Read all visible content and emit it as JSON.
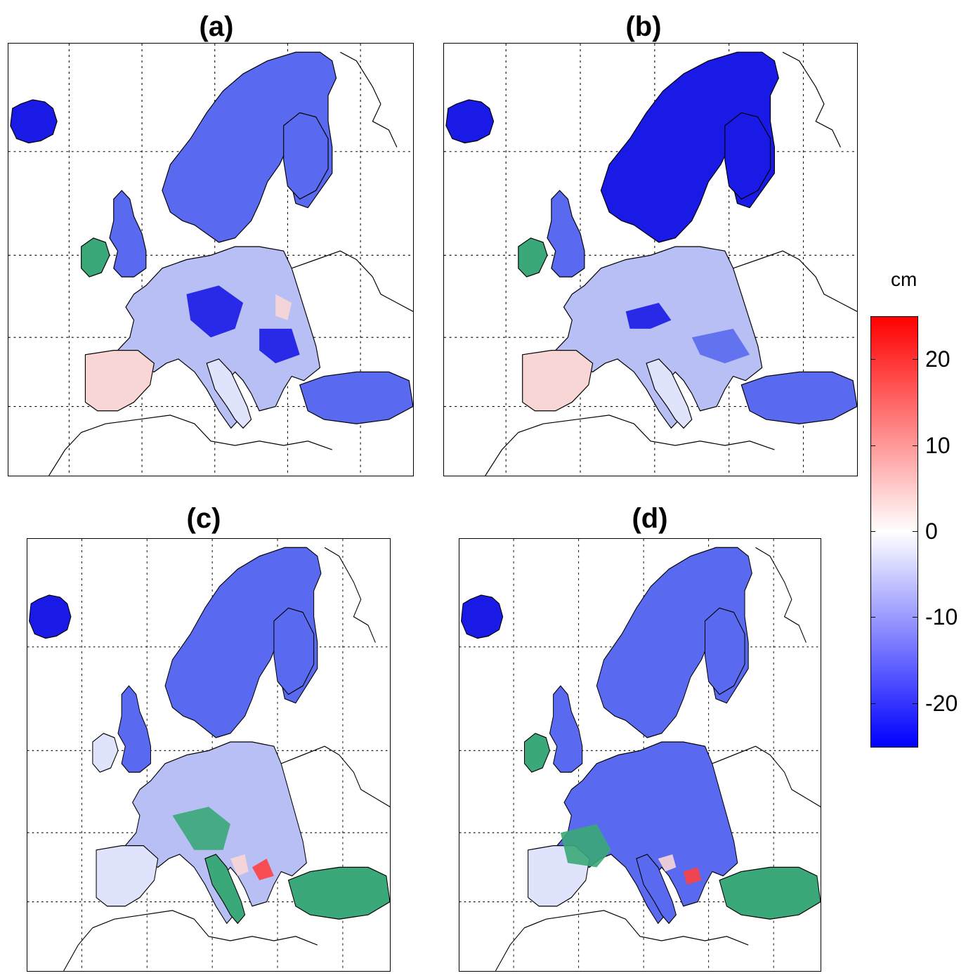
{
  "panels": [
    {
      "id": "a",
      "label": "(a)"
    },
    {
      "id": "b",
      "label": "(b)"
    },
    {
      "id": "c",
      "label": "(c)"
    },
    {
      "id": "d",
      "label": "(d)"
    }
  ],
  "colorbar": {
    "unit": "cm",
    "range": [
      -25,
      25
    ],
    "ticks": [
      {
        "value": 20,
        "label": "20"
      },
      {
        "value": 10,
        "label": "10"
      },
      {
        "value": 0,
        "label": "0"
      },
      {
        "value": -10,
        "label": "-10"
      },
      {
        "value": -20,
        "label": "-20"
      }
    ],
    "colors": {
      "max": "#ff0000",
      "mid": "#ffffff",
      "min": "#0000ff"
    }
  },
  "colors": {
    "deep_blue": "#1a1ae6",
    "mid_blue": "#5a6af0",
    "light_blue": "#b8bff5",
    "pale_blue": "#dfe3fb",
    "pale_red": "#f8d6d6",
    "red": "#ff4040",
    "stipple_green": "#3aa878",
    "coast": "#000000",
    "grid": "#000000"
  }
}
